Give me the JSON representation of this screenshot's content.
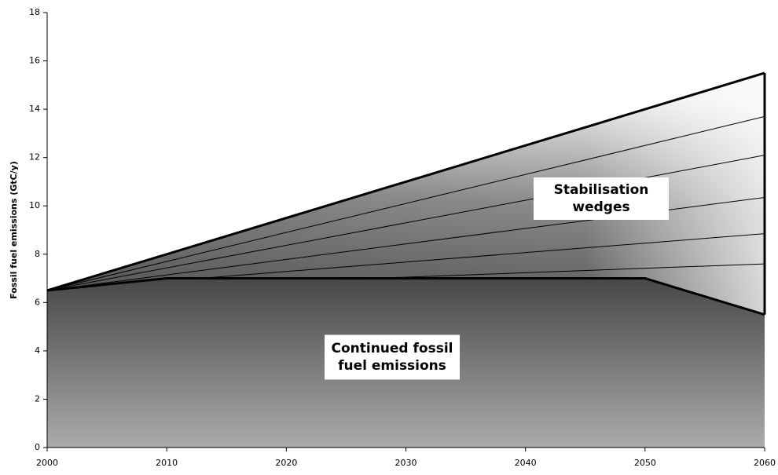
{
  "chart_data": {
    "type": "line",
    "y_label": "Fossil fuel emissions (GtC/y)",
    "xlim": [
      2000,
      2060
    ],
    "xticks": [
      2000,
      2010,
      2020,
      2030,
      2040,
      2050,
      2060
    ],
    "ylim": [
      0,
      18
    ],
    "yticks": [
      0,
      2,
      4,
      6,
      8,
      10,
      12,
      14,
      16,
      18
    ],
    "grid": false,
    "series": [
      {
        "color": "#000000",
        "line_width": 3,
        "x": [
          2000,
          2010,
          2050,
          2060
        ],
        "values": [
          6.5,
          7,
          7,
          5.5
        ]
      },
      {
        "color": "#000000",
        "line_width": 3,
        "x": [
          2000,
          2060
        ],
        "values": [
          6.5,
          15.5
        ]
      },
      {
        "color": "#000000",
        "line_width": 1,
        "x": [
          2000,
          2060
        ],
        "values": [
          6.5,
          13.7
        ]
      },
      {
        "color": "#000000",
        "line_width": 1,
        "x": [
          2000,
          2060
        ],
        "values": [
          6.5,
          12.1
        ]
      },
      {
        "color": "#000000",
        "line_width": 1,
        "x": [
          2000,
          2060
        ],
        "values": [
          6.5,
          10.35
        ]
      },
      {
        "color": "#000000",
        "line_width": 1,
        "x": [
          2000,
          2060
        ],
        "values": [
          6.5,
          8.85
        ]
      },
      {
        "color": "#000000",
        "line_width": 1,
        "x": [
          2000,
          2060
        ],
        "values": [
          6.5,
          7.6
        ]
      }
    ],
    "annotations": [
      {
        "lines": [
          "Stabilisation",
          "wedges"
        ]
      },
      {
        "lines": [
          "Continued fossil",
          "fuel emissions"
        ]
      }
    ]
  }
}
